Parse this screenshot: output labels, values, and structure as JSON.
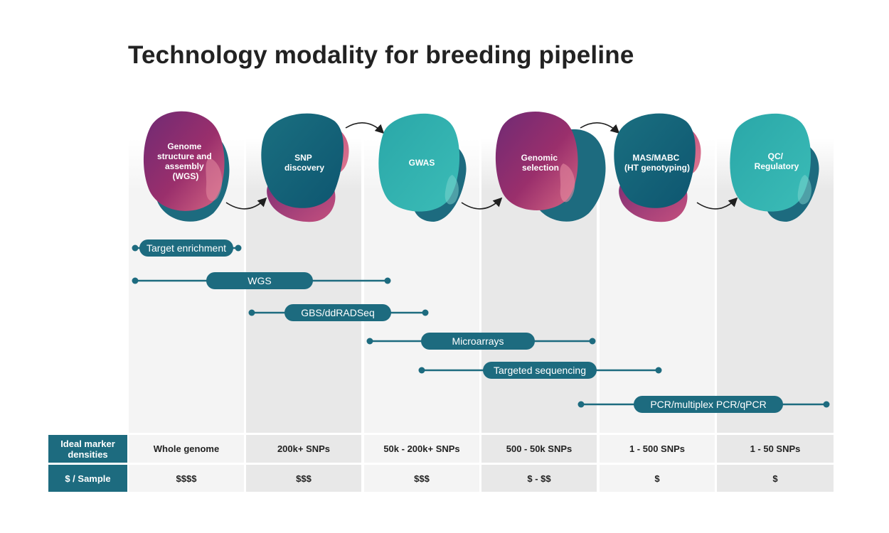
{
  "title": "Technology modality for breeding pipeline",
  "colors": {
    "teal_dark": "#1d6b7f",
    "teal_light": "#2ba9ac",
    "purple": "#7a2b6e",
    "pink": "#d86a8a",
    "column_light": "#f4f4f4",
    "column_dark": "#e8e8e8"
  },
  "stages": [
    {
      "label_lines": [
        "Genome",
        "structure and",
        "assembly",
        "(WGS)"
      ],
      "style": "purple"
    },
    {
      "label_lines": [
        "SNP",
        "discovery"
      ],
      "style": "dark-teal"
    },
    {
      "label_lines": [
        "GWAS"
      ],
      "style": "light-teal"
    },
    {
      "label_lines": [
        "Genomic",
        "selection"
      ],
      "style": "purple"
    },
    {
      "label_lines": [
        "MAS/MABC",
        "(HT genotyping)"
      ],
      "style": "dark-teal"
    },
    {
      "label_lines": [
        "QC/",
        "Regulatory"
      ],
      "style": "light-teal"
    }
  ],
  "technologies": [
    {
      "label": "Target enrichment"
    },
    {
      "label": "WGS"
    },
    {
      "label": "GBS/ddRADSeq"
    },
    {
      "label": "Microarrays"
    },
    {
      "label": "Targeted sequencing"
    },
    {
      "label": "PCR/multiplex PCR/qPCR"
    }
  ],
  "table": {
    "row_headers": [
      {
        "line1": "Ideal marker",
        "line2": "densities"
      },
      {
        "line1": "$ / Sample",
        "line2": ""
      }
    ],
    "densities": [
      "Whole genome",
      "200k+ SNPs",
      "50k - 200k+ SNPs",
      "500 - 50k SNPs",
      "1 - 500 SNPs",
      "1 - 50 SNPs"
    ],
    "cost": [
      "$$$$",
      "$$$",
      "$$$",
      "$ - $$",
      "$",
      "$"
    ]
  }
}
